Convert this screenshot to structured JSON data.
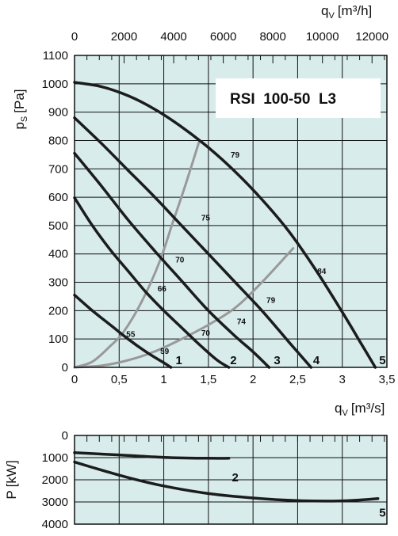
{
  "chart_data": [
    {
      "type": "line",
      "title": "RSI  100-50  L3",
      "xlabel": "q",
      "xlabel_sub": "V",
      "xlabel_unit": "[m³/s]",
      "ylabel": "p",
      "ylabel_sub": "S",
      "ylabel_unit": "[Pa]",
      "top_axis": {
        "label": "q",
        "label_sub": "V",
        "unit": "[m³/h]",
        "ticks": [
          "0",
          "2000",
          "4000",
          "6000",
          "8000",
          "10000",
          "12000"
        ],
        "tick_values": [
          0,
          2000,
          4000,
          6000,
          8000,
          10000,
          12000
        ]
      },
      "xlim": [
        0,
        3.5
      ],
      "ylim": [
        0,
        1100
      ],
      "x_ticks": [
        "0",
        "0,5",
        "1",
        "1,5",
        "2",
        "2,5",
        "3",
        "3,5"
      ],
      "x_tick_values": [
        0,
        0.5,
        1,
        1.5,
        2,
        2.5,
        3,
        3.5
      ],
      "y_ticks": [
        "0",
        "100",
        "200",
        "300",
        "400",
        "500",
        "600",
        "700",
        "800",
        "900",
        "1000",
        "1100"
      ],
      "y_tick_values": [
        0,
        100,
        200,
        300,
        400,
        500,
        600,
        700,
        800,
        900,
        1000,
        1100
      ],
      "grid": true,
      "background": "#d8ecec",
      "series": [
        {
          "name": "1",
          "color": "#1c1c1c",
          "points": [
            [
              0,
              255
            ],
            [
              0.2,
              200
            ],
            [
              0.4,
              150
            ],
            [
              0.6,
              100
            ],
            [
              0.8,
              55
            ],
            [
              0.98,
              20
            ],
            [
              1.08,
              0
            ]
          ]
        },
        {
          "name": "2",
          "color": "#1c1c1c",
          "points": [
            [
              0,
              598
            ],
            [
              0.2,
              500
            ],
            [
              0.4,
              415
            ],
            [
              0.6,
              340
            ],
            [
              0.8,
              265
            ],
            [
              1.0,
              200
            ],
            [
              1.2,
              140
            ],
            [
              1.4,
              80
            ],
            [
              1.6,
              25
            ],
            [
              1.73,
              0
            ]
          ]
        },
        {
          "name": "3",
          "color": "#1c1c1c",
          "points": [
            [
              0,
              755
            ],
            [
              0.3,
              640
            ],
            [
              0.6,
              520
            ],
            [
              0.9,
              410
            ],
            [
              1.2,
              305
            ],
            [
              1.5,
              200
            ],
            [
              1.8,
              110
            ],
            [
              2.0,
              55
            ],
            [
              2.18,
              0
            ]
          ]
        },
        {
          "name": "4",
          "color": "#1c1c1c",
          "points": [
            [
              0,
              880
            ],
            [
              0.3,
              790
            ],
            [
              0.6,
              695
            ],
            [
              0.9,
              600
            ],
            [
              1.2,
              500
            ],
            [
              1.5,
              400
            ],
            [
              1.8,
              300
            ],
            [
              2.1,
              200
            ],
            [
              2.4,
              90
            ],
            [
              2.65,
              0
            ]
          ]
        },
        {
          "name": "5",
          "color": "#1c1c1c",
          "points": [
            [
              0,
              1005
            ],
            [
              0.3,
              990
            ],
            [
              0.6,
              958
            ],
            [
              0.9,
              910
            ],
            [
              1.2,
              848
            ],
            [
              1.5,
              775
            ],
            [
              1.8,
              690
            ],
            [
              2.1,
              592
            ],
            [
              2.4,
              480
            ],
            [
              2.7,
              345
            ],
            [
              3.0,
              195
            ],
            [
              3.2,
              90
            ],
            [
              3.37,
              0
            ]
          ]
        }
      ],
      "system_curves": [
        {
          "color": "#999999",
          "points": [
            [
              0,
              0
            ],
            [
              0.2,
              20
            ],
            [
              0.4,
              75
            ],
            [
              0.55,
              125
            ],
            [
              0.75,
              230
            ],
            [
              0.95,
              370
            ],
            [
              1.1,
              510
            ],
            [
              1.25,
              650
            ],
            [
              1.4,
              800
            ]
          ]
        },
        {
          "color": "#999999",
          "points": [
            [
              0,
              0
            ],
            [
              0.3,
              6
            ],
            [
              0.6,
              25
            ],
            [
              0.9,
              56
            ],
            [
              1.2,
              100
            ],
            [
              1.5,
              150
            ],
            [
              1.8,
              210
            ],
            [
              2.1,
              300
            ],
            [
              2.45,
              420
            ]
          ]
        }
      ],
      "efficiency_labels": [
        {
          "text": "79",
          "x": 1.75,
          "y": 740
        },
        {
          "text": "75",
          "x": 1.42,
          "y": 518
        },
        {
          "text": "70",
          "x": 1.13,
          "y": 370
        },
        {
          "text": "66",
          "x": 0.93,
          "y": 268
        },
        {
          "text": "55",
          "x": 0.58,
          "y": 108
        },
        {
          "text": "59",
          "x": 0.96,
          "y": 48
        },
        {
          "text": "70",
          "x": 1.42,
          "y": 112
        },
        {
          "text": "74",
          "x": 1.82,
          "y": 152
        },
        {
          "text": "79",
          "x": 2.15,
          "y": 228
        },
        {
          "text": "84",
          "x": 2.72,
          "y": 330
        }
      ],
      "curve_labels": [
        {
          "text": "1",
          "x": 1.17,
          "y": 28
        },
        {
          "text": "2",
          "x": 1.78,
          "y": 28
        },
        {
          "text": "3",
          "x": 2.27,
          "y": 28
        },
        {
          "text": "4",
          "x": 2.71,
          "y": 28
        },
        {
          "text": "5",
          "x": 3.45,
          "y": 28
        }
      ]
    },
    {
      "type": "line",
      "ylabel": "P",
      "ylabel_unit": "[kW]",
      "xlim": [
        0,
        3.5
      ],
      "ylim": [
        0,
        4000
      ],
      "y_inverted": true,
      "y_ticks": [
        "0",
        "1000",
        "2000",
        "3000",
        "4000"
      ],
      "y_tick_values": [
        0,
        1000,
        2000,
        3000,
        4000
      ],
      "grid": true,
      "background": "#d8ecec",
      "series": [
        {
          "name": "2",
          "color": "#1c1c1c",
          "points": [
            [
              0,
              780
            ],
            [
              0.5,
              880
            ],
            [
              1.0,
              990
            ],
            [
              1.5,
              1030
            ],
            [
              1.73,
              1030
            ]
          ]
        },
        {
          "name": "5",
          "color": "#1c1c1c",
          "points": [
            [
              0,
              1200
            ],
            [
              0.3,
              1560
            ],
            [
              0.6,
              1900
            ],
            [
              1.0,
              2280
            ],
            [
              1.5,
              2620
            ],
            [
              2.0,
              2820
            ],
            [
              2.5,
              2940
            ],
            [
              3.0,
              2950
            ],
            [
              3.4,
              2850
            ]
          ]
        }
      ],
      "curve_labels": [
        {
          "text": "2",
          "x": 1.8,
          "y": 1850
        },
        {
          "text": "5",
          "x": 3.45,
          "y": 3450
        }
      ]
    }
  ]
}
